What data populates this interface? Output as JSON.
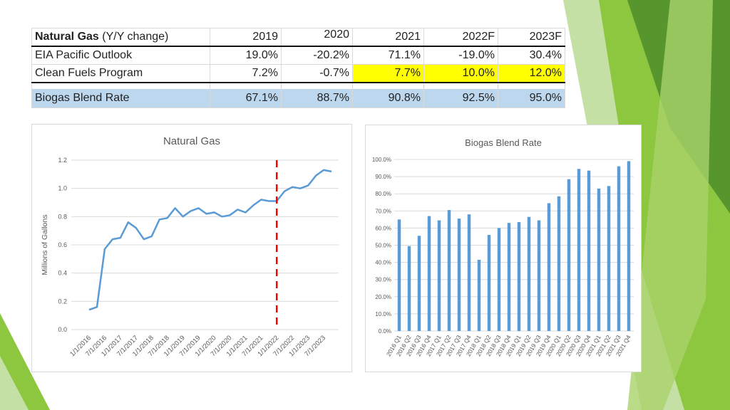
{
  "table": {
    "title_bold": "Natural Gas",
    "title_rest": " (Y/Y change)",
    "years": [
      "2019",
      "2020",
      "2021",
      "2022F",
      "2023F"
    ],
    "rows": [
      {
        "label": "EIA Pacific Outlook",
        "values": [
          "19.0%",
          "-20.2%",
          "71.1%",
          "-19.0%",
          "30.4%"
        ]
      },
      {
        "label": "Clean Fuels Program",
        "values": [
          "7.2%",
          "-0.7%",
          "7.7%",
          "10.0%",
          "12.0%"
        ]
      }
    ],
    "highlight_color": "#ffff00",
    "blend": {
      "label": "Biogas Blend Rate",
      "values": [
        "67.1%",
        "88.7%",
        "90.8%",
        "92.5%",
        "95.0%"
      ]
    },
    "blend_color": "#bdd7ee"
  },
  "chart_data": [
    {
      "type": "line",
      "title": "Natural Gas",
      "ylabel": "Millions of Gallons",
      "ylim": [
        0,
        1.2
      ],
      "yticks": [
        "0.0",
        "0.2",
        "0.4",
        "0.6",
        "0.8",
        "1.0",
        "1.2"
      ],
      "xticks": [
        "1/1/2016",
        "7/1/2016",
        "1/1/2017",
        "7/1/2017",
        "1/1/2018",
        "7/1/2018",
        "1/1/2019",
        "7/1/2019",
        "1/1/2020",
        "7/1/2020",
        "1/1/2021",
        "7/1/2021",
        "1/1/2022",
        "7/1/2022",
        "1/1/2023",
        "7/1/2023"
      ],
      "x": [
        "2016-01",
        "2016-04",
        "2016-07",
        "2016-10",
        "2017-01",
        "2017-04",
        "2017-07",
        "2017-10",
        "2018-01",
        "2018-04",
        "2018-07",
        "2018-10",
        "2019-01",
        "2019-04",
        "2019-07",
        "2019-10",
        "2020-01",
        "2020-04",
        "2020-07",
        "2020-10",
        "2021-01",
        "2021-04",
        "2021-07",
        "2021-10",
        "2022-01",
        "2022-04",
        "2022-07",
        "2022-10",
        "2023-01",
        "2023-04",
        "2023-07",
        "2023-10"
      ],
      "values": [
        0.14,
        0.16,
        0.57,
        0.64,
        0.65,
        0.76,
        0.72,
        0.64,
        0.66,
        0.78,
        0.79,
        0.86,
        0.8,
        0.84,
        0.86,
        0.82,
        0.83,
        0.8,
        0.81,
        0.85,
        0.83,
        0.88,
        0.92,
        0.91,
        0.91,
        0.98,
        1.01,
        1.0,
        1.02,
        1.09,
        1.13,
        1.12
      ],
      "marker_line": {
        "x": "2022-01",
        "style": "dashed",
        "color": "#ff0000"
      },
      "line_color": "#5b9bd5",
      "grid": true
    },
    {
      "type": "bar",
      "title": "Biogas Blend Rate",
      "ylim": [
        0,
        100
      ],
      "yticks": [
        "0.0%",
        "10.0%",
        "20.0%",
        "30.0%",
        "40.0%",
        "50.0%",
        "60.0%",
        "70.0%",
        "80.0%",
        "90.0%",
        "100.0%"
      ],
      "categories": [
        "2016 Q1",
        "2016 Q2",
        "2016 Q3",
        "2016 Q4",
        "2017 Q1",
        "2017 Q2",
        "2017 Q3",
        "2017 Q4",
        "2018 Q1",
        "2018 Q2",
        "2018 Q3",
        "2018 Q4",
        "2019 Q1",
        "2019 Q2",
        "2019 Q3",
        "2019 Q4",
        "2020 Q1",
        "2020 Q2",
        "2020 Q3",
        "2020 Q4",
        "2021 Q1",
        "2021 Q2",
        "2021 Q3",
        "2021 Q4"
      ],
      "values": [
        65,
        49.5,
        55.5,
        67,
        64.5,
        70.5,
        65.5,
        68,
        41.5,
        56,
        60,
        63,
        63.5,
        66.5,
        64.5,
        74.5,
        78.5,
        88.5,
        94.5,
        93.5,
        83,
        84.5,
        96,
        99
      ],
      "bar_color": "#5b9bd5",
      "grid": true
    }
  ]
}
